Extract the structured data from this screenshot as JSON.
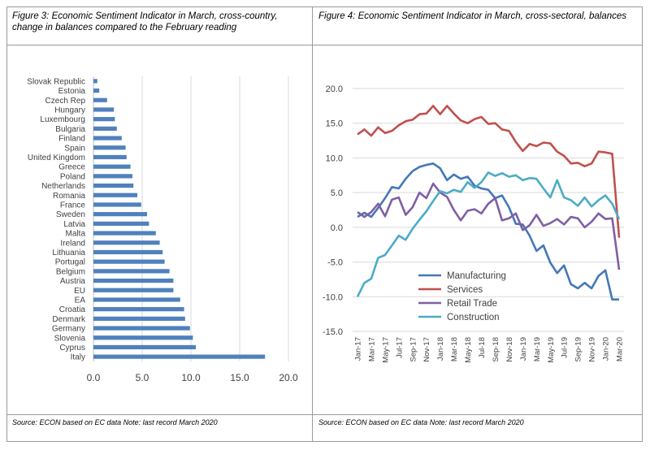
{
  "figure3": {
    "title": "Figure 3: Economic Sentiment Indicator in March, cross-country, change in balances compared to the February reading",
    "source": "Source: ECON based on EC data Note: last record March 2020"
  },
  "figure4": {
    "title": "Figure 4: Economic Sentiment Indicator in March, cross-sectoral, balances",
    "source": "Source: ECON based on EC data Note: last record March 2020"
  },
  "colors": {
    "bar": "#4f81bd",
    "manufacturing": "#4477b9",
    "services": "#c0504d",
    "retail_trade": "#7f5fa5",
    "construction": "#4bacc6",
    "grid": "#d9d9d9"
  },
  "chart_data": [
    {
      "type": "bar",
      "orientation": "horizontal",
      "categories": [
        "Slovak Republic",
        "Estonia",
        "Czech Rep",
        "Hungary",
        "Luxembourg",
        "Bulgaria",
        "Finland",
        "Spain",
        "United Kingdom",
        "Greece",
        "Poland",
        "Netherlands",
        "Romania",
        "France",
        "Sweden",
        "Latvia",
        "Malta",
        "Ireland",
        "Lithuania",
        "Portugal",
        "Belgium",
        "Austria",
        "EU",
        "EA",
        "Croatia",
        "Denmark",
        "Germany",
        "Slovenia",
        "Cyprus",
        "Italy"
      ],
      "values": [
        0.4,
        0.6,
        1.4,
        2.1,
        2.2,
        2.4,
        2.9,
        3.3,
        3.4,
        3.8,
        4.0,
        4.1,
        4.5,
        4.9,
        5.5,
        5.7,
        6.4,
        6.8,
        7.1,
        7.3,
        7.8,
        8.2,
        8.2,
        8.9,
        9.3,
        9.4,
        9.9,
        10.2,
        10.5,
        17.6
      ],
      "xticks": [
        "0.0",
        "5.0",
        "10.0",
        "15.0",
        "20.0"
      ],
      "xlim": [
        0,
        20
      ],
      "grid": "vertical"
    },
    {
      "type": "line",
      "x": [
        "Jan-17",
        "Feb-17",
        "Mar-17",
        "Apr-17",
        "May-17",
        "Jun-17",
        "Jul-17",
        "Aug-17",
        "Sep-17",
        "Oct-17",
        "Nov-17",
        "Dec-17",
        "Jan-18",
        "Feb-18",
        "Mar-18",
        "Apr-18",
        "May-18",
        "Jun-18",
        "Jul-18",
        "Aug-18",
        "Sep-18",
        "Oct-18",
        "Nov-18",
        "Dec-18",
        "Jan-19",
        "Feb-19",
        "Mar-19",
        "Apr-19",
        "May-19",
        "Jun-19",
        "Jul-19",
        "Aug-19",
        "Sep-19",
        "Oct-19",
        "Nov-19",
        "Dec-19",
        "Jan-20",
        "Feb-20",
        "Mar-20"
      ],
      "xticks": [
        "Jan-17",
        "Mar-17",
        "May-17",
        "Jul-17",
        "Sep-17",
        "Nov-17",
        "Jan-18",
        "Mar-18",
        "May-18",
        "Jul-18",
        "Sep-18",
        "Nov-18",
        "Jan-19",
        "Mar-19",
        "May-19",
        "Jul-19",
        "Sep-19",
        "Nov-19",
        "Jan-20",
        "Mar-20"
      ],
      "yticks": [
        "20.0",
        "15.0",
        "10.0",
        "5.0",
        "0.0",
        "-5.0",
        "-10.0",
        "-15.0"
      ],
      "ylim": [
        -15,
        20
      ],
      "grid": "horizontal",
      "legend_position": "lower-left",
      "series": [
        {
          "name": "Manufacturing",
          "values": [
            1.5,
            2.1,
            1.5,
            2.8,
            4.2,
            5.8,
            5.6,
            7.0,
            8.1,
            8.7,
            9.0,
            9.2,
            8.5,
            6.8,
            7.6,
            7.0,
            7.3,
            6.0,
            5.6,
            5.4,
            4.2,
            4.6,
            2.9,
            0.5,
            0.4,
            -1.2,
            -3.4,
            -2.6,
            -5.1,
            -6.6,
            -5.5,
            -8.2,
            -8.8,
            -8.0,
            -8.8,
            -7.0,
            -6.2,
            -10.4,
            -10.4
          ]
        },
        {
          "name": "Services",
          "values": [
            13.4,
            14.1,
            13.2,
            14.4,
            13.6,
            13.9,
            14.7,
            15.3,
            15.5,
            16.3,
            16.4,
            17.5,
            16.3,
            17.5,
            16.4,
            15.4,
            15.0,
            15.6,
            15.9,
            14.9,
            15.0,
            14.1,
            13.9,
            12.3,
            11.0,
            12.0,
            11.7,
            12.2,
            12.1,
            10.9,
            10.3,
            9.2,
            9.3,
            8.8,
            9.2,
            10.9,
            10.8,
            10.6,
            -1.5
          ]
        },
        {
          "name": "Retail Trade",
          "values": [
            2.2,
            1.5,
            2.2,
            3.4,
            1.6,
            4.0,
            4.3,
            1.8,
            2.9,
            5.0,
            4.2,
            6.3,
            5.0,
            4.4,
            2.5,
            1.0,
            2.4,
            2.6,
            2.0,
            3.4,
            4.2,
            1.0,
            1.3,
            2.0,
            -0.4,
            0.3,
            1.8,
            0.2,
            0.6,
            1.2,
            0.4,
            1.5,
            1.3,
            0.0,
            0.8,
            2.0,
            1.2,
            1.3,
            -6.1
          ]
        },
        {
          "name": "Construction",
          "values": [
            -10.0,
            -8.0,
            -7.4,
            -4.4,
            -4.0,
            -2.6,
            -1.2,
            -1.8,
            -0.2,
            1.1,
            2.3,
            3.8,
            5.2,
            4.9,
            5.4,
            5.1,
            6.5,
            5.7,
            6.5,
            7.9,
            7.4,
            7.8,
            7.3,
            7.5,
            6.8,
            7.1,
            7.0,
            5.6,
            4.3,
            6.8,
            4.3,
            3.9,
            3.1,
            4.3,
            3.0,
            3.9,
            4.6,
            3.4,
            1.2
          ]
        }
      ]
    }
  ]
}
